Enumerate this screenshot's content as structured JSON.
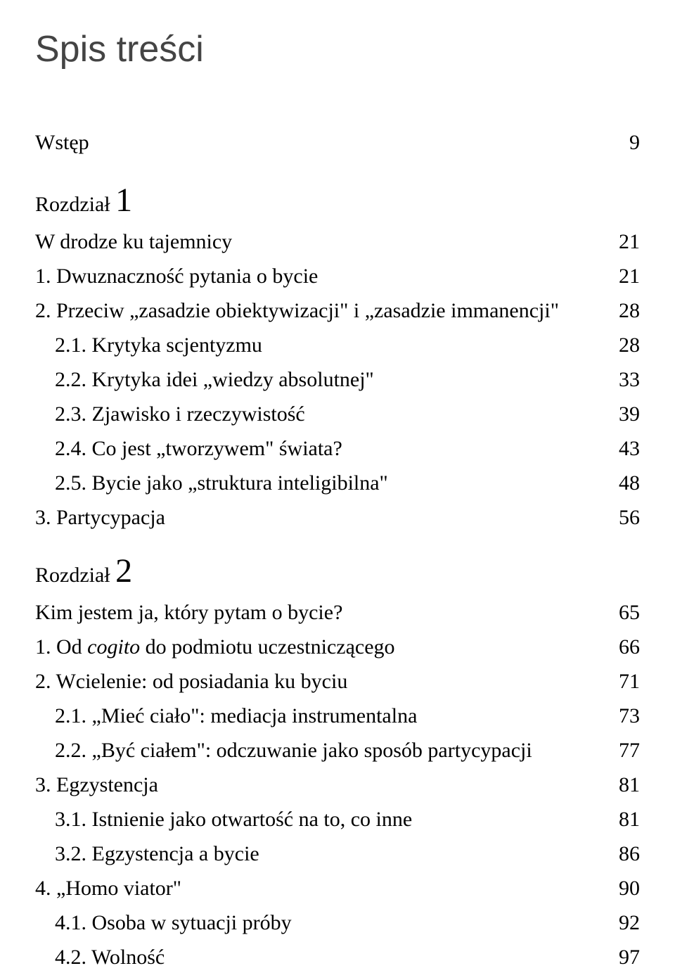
{
  "page_title": "Spis treści",
  "wstep_label": "Wstęp",
  "wstep_page": "9",
  "chapters": [
    {
      "chapter_label": "Rozdział",
      "chapter_number": "1",
      "title": "W drodze ku tajemnicy",
      "title_page": "21",
      "entries": [
        {
          "label": "1. Dwuznaczność pytania o bycie",
          "page": "21",
          "indent": false
        },
        {
          "label": "2. Przeciw „zasadzie obiektywizacji\" i „zasadzie immanencji\"",
          "page": "28",
          "indent": false
        },
        {
          "label": "2.1. Krytyka scjentyzmu",
          "page": "28",
          "indent": true
        },
        {
          "label": "2.2. Krytyka idei „wiedzy absolutnej\"",
          "page": "33",
          "indent": true
        },
        {
          "label": "2.3. Zjawisko i rzeczywistość",
          "page": "39",
          "indent": true
        },
        {
          "label": "2.4. Co jest „tworzywem\" świata?",
          "page": "43",
          "indent": true
        },
        {
          "label": "2.5. Bycie jako „struktura inteligibilna\"",
          "page": "48",
          "indent": true
        },
        {
          "label": "3. Partycypacja",
          "page": "56",
          "indent": false
        }
      ]
    },
    {
      "chapter_label": "Rozdział",
      "chapter_number": "2",
      "title": "Kim jestem ja, który pytam o bycie?",
      "title_page": "65",
      "entries": [
        {
          "label_parts": [
            {
              "text": "1. Od ",
              "italic": false
            },
            {
              "text": "cogito",
              "italic": true
            },
            {
              "text": " do podmiotu uczestniczącego",
              "italic": false
            }
          ],
          "page": "66",
          "indent": false
        },
        {
          "label": "2. Wcielenie: od posiadania ku byciu",
          "page": "71",
          "indent": false
        },
        {
          "label": "2.1. „Mieć ciało\": mediacja instrumentalna",
          "page": "73",
          "indent": true
        },
        {
          "label": "2.2. „Być ciałem\": odczuwanie jako sposób partycypacji",
          "page": "77",
          "indent": true
        },
        {
          "label": "3. Egzystencja",
          "page": "81",
          "indent": false
        },
        {
          "label": "3.1. Istnienie jako otwartość na to, co inne",
          "page": "81",
          "indent": true
        },
        {
          "label": "3.2. Egzystencja a bycie",
          "page": "86",
          "indent": true
        },
        {
          "label": "4. „Homo viator\"",
          "page": "90",
          "indent": false
        },
        {
          "label": "4.1. Osoba w sytuacji próby",
          "page": "92",
          "indent": true
        },
        {
          "label": "4.2. Wolność",
          "page": "97",
          "indent": true
        }
      ]
    }
  ],
  "colors": {
    "background": "#ffffff",
    "text": "#000000",
    "title": "#444444"
  },
  "typography": {
    "title_fontsize": 52,
    "body_fontsize": 30,
    "chapter_num_fontsize": 48,
    "title_fontfamily": "Arial, Helvetica, sans-serif",
    "body_fontfamily": "Georgia, 'Times New Roman', serif"
  }
}
